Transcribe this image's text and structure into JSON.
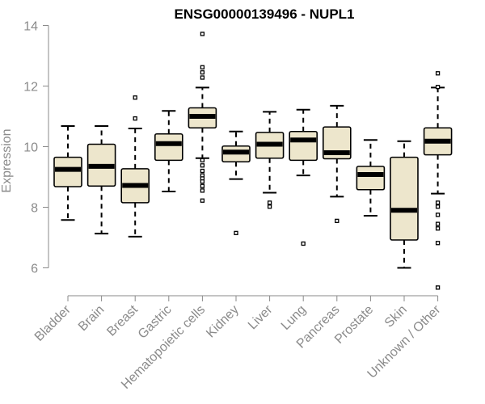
{
  "chart_data": {
    "type": "boxplot",
    "title": "ENSG00000139496 - NUPL1",
    "ylabel": "Expression",
    "xlabel": "",
    "ylim": [
      5,
      14.2
    ],
    "yticks": [
      6,
      8,
      10,
      12,
      14
    ],
    "categories": [
      "Bladder",
      "Brain",
      "Breast",
      "Gastric",
      "Hematopoietic cells",
      "Kidney",
      "Liver",
      "Lung",
      "Pancreas",
      "Prostate",
      "Skin",
      "Unknown / Other"
    ],
    "boxes": [
      {
        "name": "Bladder",
        "min": 7.58,
        "q1": 8.68,
        "median": 9.25,
        "q3": 9.65,
        "max": 10.68,
        "outliers": []
      },
      {
        "name": "Brain",
        "min": 7.13,
        "q1": 8.7,
        "median": 9.35,
        "q3": 10.08,
        "max": 10.68,
        "outliers": []
      },
      {
        "name": "Breast",
        "min": 7.03,
        "q1": 8.15,
        "median": 8.72,
        "q3": 9.27,
        "max": 10.6,
        "outliers": [
          10.93,
          11.62
        ]
      },
      {
        "name": "Gastric",
        "min": 8.52,
        "q1": 9.55,
        "median": 10.1,
        "q3": 10.42,
        "max": 11.18,
        "outliers": []
      },
      {
        "name": "Hematopoietic cells",
        "min": 9.62,
        "q1": 10.62,
        "median": 11.0,
        "q3": 11.28,
        "max": 11.95,
        "outliers": [
          13.72,
          12.62,
          12.45,
          12.28,
          9.55,
          9.38,
          9.2,
          9.05,
          8.95,
          8.85,
          8.7,
          8.55,
          8.22
        ]
      },
      {
        "name": "Kidney",
        "min": 8.93,
        "q1": 9.5,
        "median": 9.82,
        "q3": 10.02,
        "max": 10.5,
        "outliers": [
          7.15
        ]
      },
      {
        "name": "Liver",
        "min": 8.48,
        "q1": 9.62,
        "median": 10.08,
        "q3": 10.47,
        "max": 11.15,
        "outliers": [
          8.15,
          8.02
        ]
      },
      {
        "name": "Lung",
        "min": 9.05,
        "q1": 9.55,
        "median": 10.22,
        "q3": 10.5,
        "max": 11.22,
        "outliers": [
          6.8
        ]
      },
      {
        "name": "Pancreas",
        "min": 8.35,
        "q1": 9.6,
        "median": 9.8,
        "q3": 10.65,
        "max": 11.35,
        "outliers": [
          7.55
        ]
      },
      {
        "name": "Prostate",
        "min": 7.72,
        "q1": 8.58,
        "median": 9.08,
        "q3": 9.35,
        "max": 10.22,
        "outliers": []
      },
      {
        "name": "Skin",
        "min": 6.0,
        "q1": 6.92,
        "median": 7.9,
        "q3": 9.65,
        "max": 10.18,
        "outliers": []
      },
      {
        "name": "Unknown / Other",
        "min": 8.45,
        "q1": 9.73,
        "median": 10.18,
        "q3": 10.62,
        "max": 11.95,
        "outliers": [
          12.42,
          11.97,
          8.15,
          8.02,
          7.75,
          7.45,
          7.3,
          6.82,
          5.35
        ]
      }
    ]
  }
}
